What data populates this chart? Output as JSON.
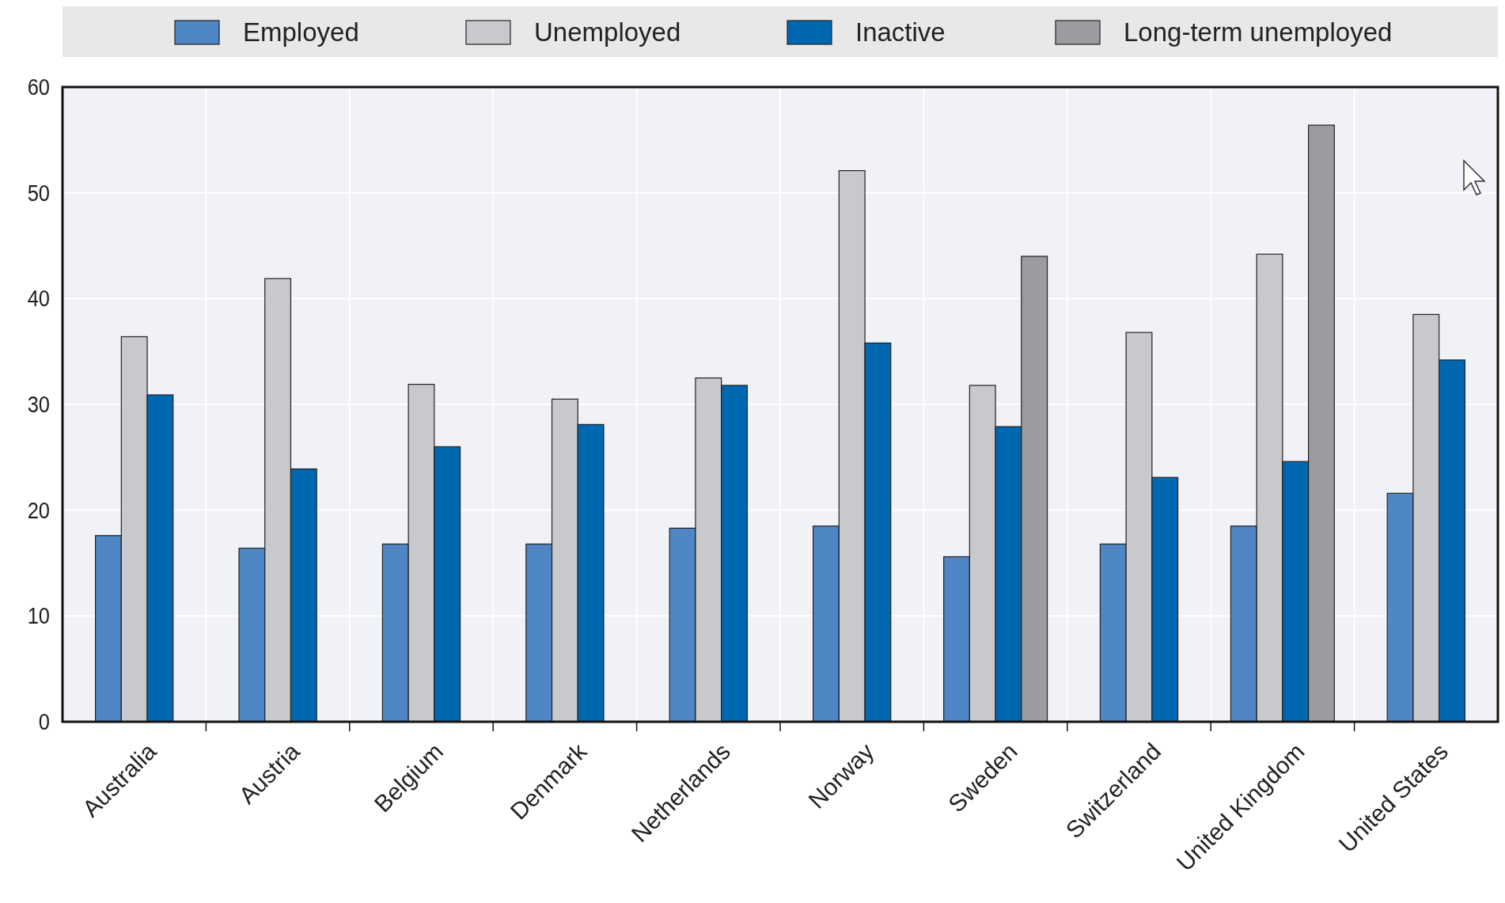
{
  "chart_data": {
    "type": "bar",
    "categories": [
      "Australia",
      "Austria",
      "Belgium",
      "Denmark",
      "Netherlands",
      "Norway",
      "Sweden",
      "Switzerland",
      "United Kingdom",
      "United States"
    ],
    "series": [
      {
        "name": "Employed",
        "color": "#4f86c6",
        "values": [
          17.6,
          16.4,
          16.8,
          16.8,
          18.3,
          18.5,
          15.6,
          16.8,
          18.5,
          21.6
        ]
      },
      {
        "name": "Unemployed",
        "color": "#c8c9cc",
        "values": [
          36.4,
          41.9,
          31.9,
          30.5,
          32.5,
          52.1,
          31.8,
          36.8,
          44.2,
          38.5
        ]
      },
      {
        "name": "Inactive",
        "color": "#0067b1",
        "values": [
          30.9,
          23.9,
          26.0,
          28.1,
          31.8,
          35.8,
          27.9,
          23.1,
          24.6,
          34.2
        ]
      },
      {
        "name": "Long-term unemployed",
        "color": "#9b9ca0",
        "values": [
          null,
          null,
          null,
          null,
          null,
          null,
          44.0,
          null,
          56.4,
          null
        ]
      }
    ],
    "ylim": [
      0,
      60
    ],
    "yticks": [
      0,
      10,
      20,
      30,
      40,
      50,
      60
    ],
    "grid": true,
    "legend": "top"
  }
}
